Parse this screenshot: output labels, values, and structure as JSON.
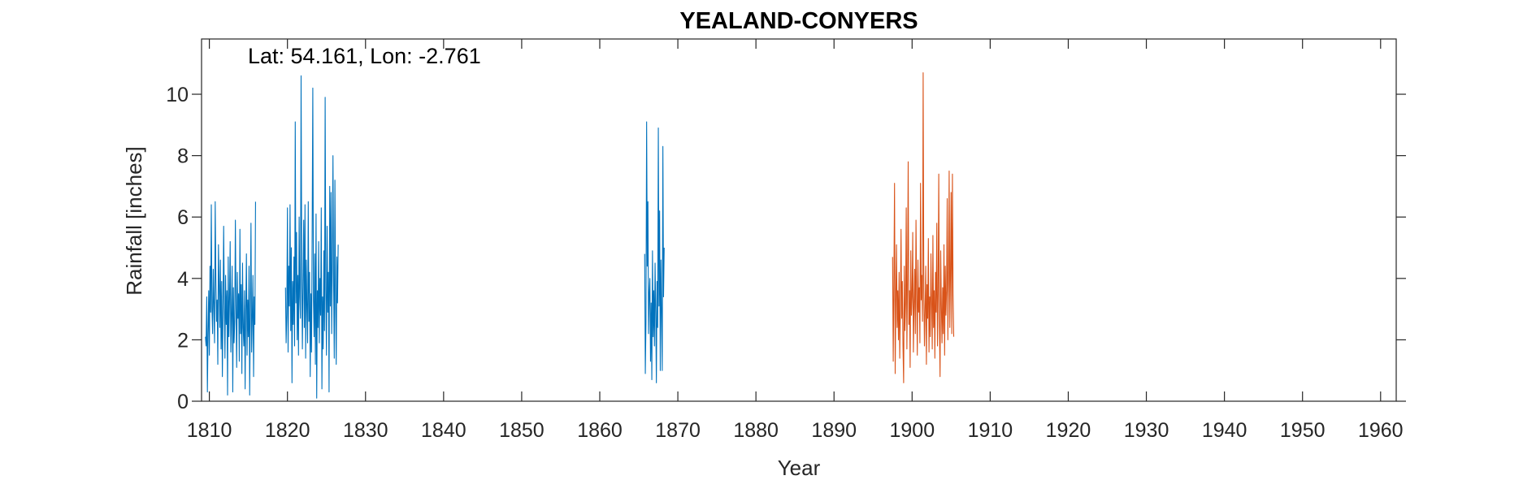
{
  "chart_data": {
    "type": "line",
    "title": "YEALAND-CONYERS",
    "xlabel": "Year",
    "ylabel": "Rainfall [inches]",
    "annotation": "Lat: 54.161, Lon: -2.761",
    "xlim": [
      1809,
      1962
    ],
    "ylim": [
      0,
      11.8
    ],
    "xticks": [
      1810,
      1820,
      1830,
      1840,
      1850,
      1860,
      1870,
      1880,
      1890,
      1900,
      1910,
      1920,
      1930,
      1940,
      1950,
      1960
    ],
    "yticks": [
      0,
      2,
      4,
      6,
      8,
      10
    ],
    "grid": false,
    "colors": {
      "series_blue": "#0072BD",
      "series_orange": "#D95319",
      "axis": "#262626"
    },
    "series": [
      {
        "color": "#0072BD",
        "segments": [
          {
            "x_start": 1809.5,
            "x_step": 0.0833,
            "values": [
              2.1,
              1.8,
              3.4,
              0.3,
              2.2,
              3.6,
              1.5,
              4.4,
              2.9,
              6.4,
              3.0,
              2.2,
              4.3,
              3.1,
              1.9,
              6.5,
              4.0,
              2.6,
              3.3,
              1.2,
              5.1,
              3.8,
              2.4,
              4.6,
              1.7,
              3.9,
              0.8,
              2.9,
              5.7,
              3.2,
              1.4,
              4.1,
              2.5,
              3.6,
              0.2,
              4.7,
              2.1,
              3.3,
              5.2,
              1.6,
              2.8,
              4.4,
              0.3,
              3.7,
              1.9,
              2.6,
              5.9,
              3.1,
              1.1,
              4.2,
              2.7,
              3.5,
              1.3,
              5.6,
              2.2,
              3.8,
              0.9,
              4.5,
              2.4,
              1.8,
              3.6,
              0.4,
              2.9,
              4.8,
              1.5,
              3.3,
              2.1,
              4.4,
              0.2,
              3.0,
              5.8,
              1.6,
              2.7,
              4.1,
              0.8,
              3.4,
              2.5,
              6.5
            ]
          },
          {
            "x_start": 1819.75,
            "x_step": 0.0833,
            "values": [
              3.7,
              1.9,
              2.8,
              6.3,
              1.6,
              4.4,
              3.1,
              6.4,
              2.3,
              5.0,
              0.6,
              3.9,
              2.5,
              4.7,
              1.8,
              9.1,
              3.2,
              5.5,
              2.0,
              4.1,
              1.5,
              6.0,
              3.4,
              2.7,
              10.6,
              4.3,
              1.7,
              3.8,
              5.9,
              2.4,
              6.4,
              1.4,
              4.6,
              3.0,
              1.9,
              6.5,
              2.6,
              4.2,
              0.8,
              3.5,
              1.6,
              5.4,
              10.2,
              3.3,
              2.1,
              4.8,
              1.2,
              6.1,
              0.1,
              3.6,
              2.4,
              5.2,
              1.9,
              4.0,
              2.8,
              6.3,
              0.4,
              3.4,
              1.7,
              4.9,
              2.3,
              9.9,
              3.6,
              1.5,
              5.7,
              2.9,
              4.2,
              0.3,
              7.0,
              3.1,
              6.8,
              2.2,
              4.5,
              8.0,
              3.8,
              1.4,
              7.2,
              3.3,
              1.2,
              4.7,
              3.2,
              5.1
            ]
          },
          {
            "x_start": 1865.75,
            "x_step": 0.0833,
            "values": [
              4.8,
              0.9,
              2.6,
              9.1,
              4.4,
              6.5,
              2.2,
              3.5,
              4.0,
              1.3,
              3.2,
              0.7,
              4.9,
              2.1,
              3.6,
              1.8,
              4.5,
              2.9,
              0.6,
              3.9,
              2.4,
              8.9,
              3.1,
              6.2,
              1.0,
              4.6,
              2.8,
              1.0,
              8.3,
              3.4,
              5.0
            ]
          }
        ]
      },
      {
        "color": "#D95319",
        "segments": [
          {
            "x_start": 1897.5,
            "x_step": 0.0833,
            "values": [
              4.7,
              1.3,
              3.8,
              7.1,
              0.9,
              3.3,
              5.1,
              2.4,
              3.6,
              2.0,
              4.2,
              1.4,
              3.0,
              5.6,
              2.7,
              3.9,
              1.8,
              0.6,
              4.4,
              2.3,
              3.2,
              6.3,
              1.7,
              4.0,
              7.8,
              2.5,
              3.6,
              1.1,
              4.9,
              2.8,
              3.4,
              5.5,
              1.6,
              3.1,
              4.3,
              2.2,
              5.9,
              3.5,
              1.5,
              4.6,
              2.9,
              3.7,
              1.9,
              7.1,
              3.3,
              4.1,
              2.6,
              10.7,
              3.6,
              1.8,
              3.0,
              4.4,
              1.2,
              3.8,
              2.7,
              5.3,
              1.6,
              3.4,
              2.1,
              4.8,
              3.2,
              1.7,
              5.4,
              2.4,
              3.6,
              1.4,
              4.2,
              2.9,
              5.8,
              1.8,
              3.5,
              7.4,
              2.5,
              0.8,
              4.9,
              3.1,
              1.9,
              3.7,
              2.2,
              5.1,
              1.5,
              4.4,
              2.8,
              3.6,
              6.6,
              2.0,
              3.9,
              7.5,
              2.4,
              4.1,
              6.8,
              2.2,
              7.4,
              3.5,
              2.1
            ]
          }
        ]
      }
    ]
  }
}
